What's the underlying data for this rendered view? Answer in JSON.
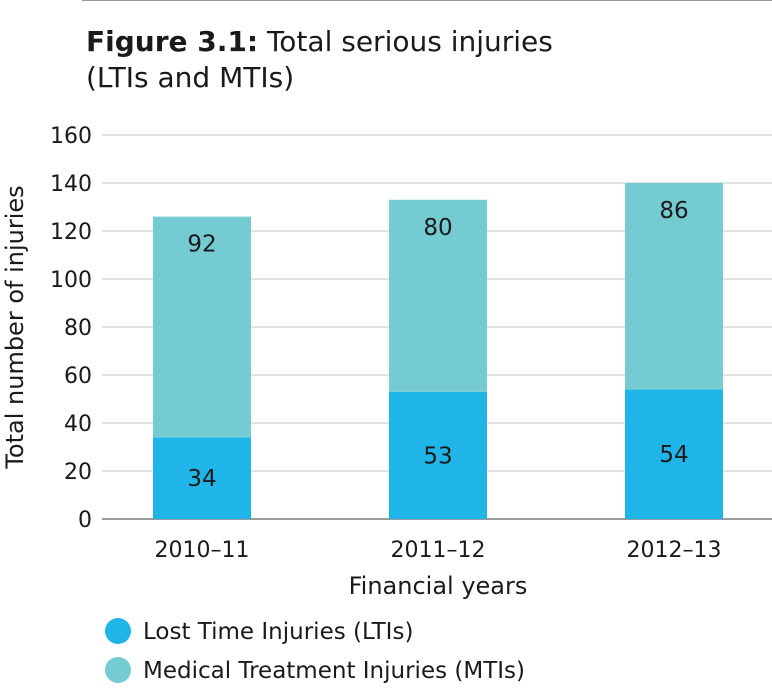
{
  "title": {
    "label": "Figure 3.1:",
    "line1": "Total serious injuries",
    "line2": "(LTIs and MTIs)"
  },
  "chart_data": {
    "type": "bar",
    "stacked": true,
    "categories": [
      "2010–11",
      "2011–12",
      "2012–13"
    ],
    "series": [
      {
        "name": "Lost Time Injuries (LTIs)",
        "values": [
          34,
          53,
          54
        ],
        "color": "#1fb5e9"
      },
      {
        "name": "Medical Treatment Injuries (MTIs)",
        "values": [
          92,
          80,
          86
        ],
        "color": "#74cbd1"
      }
    ],
    "xlabel": "Financial years",
    "ylabel": "Total number of injuries",
    "ylim": [
      0,
      160
    ],
    "yticks": [
      0,
      20,
      40,
      60,
      80,
      100,
      120,
      140,
      160
    ],
    "grid": true,
    "legend": "bottom-left"
  }
}
